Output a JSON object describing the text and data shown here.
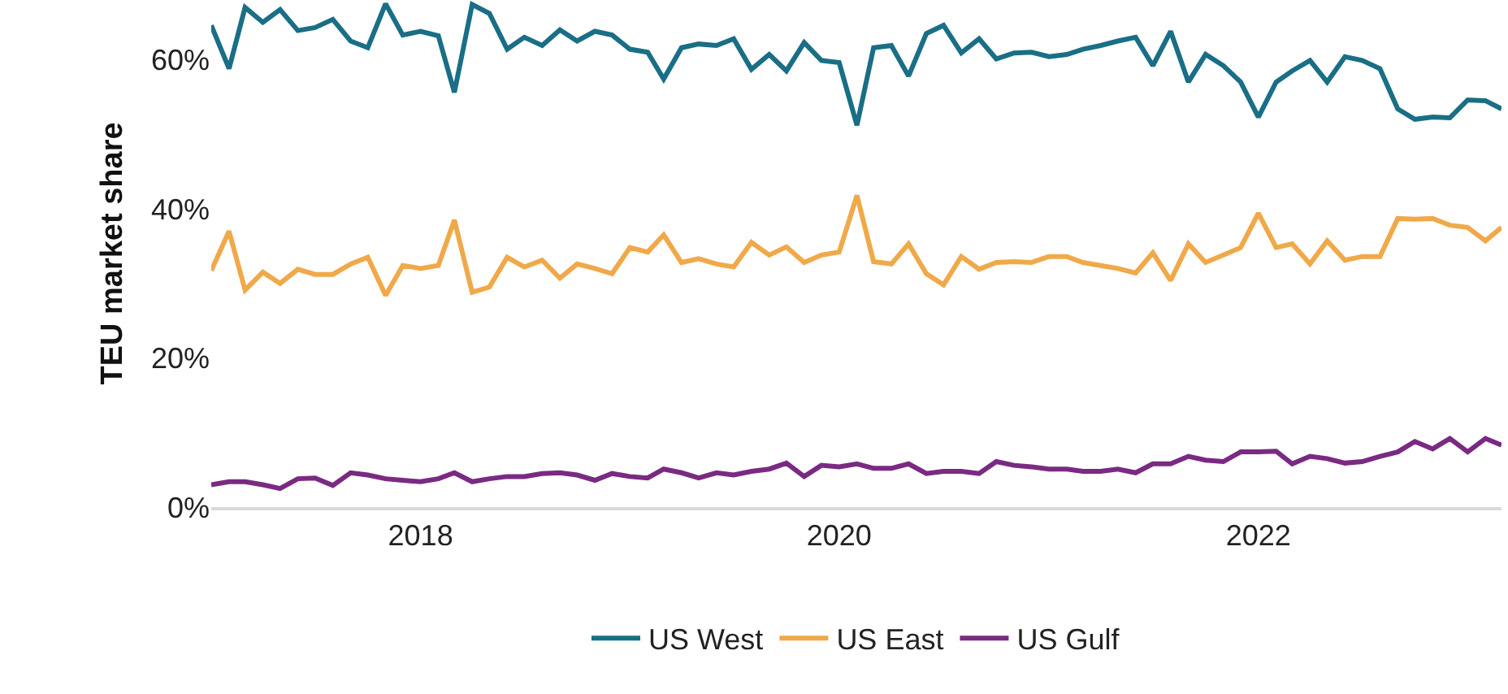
{
  "chart_data": {
    "type": "line",
    "ylabel": "TEU market share",
    "x": [
      "2017-01",
      "2017-02",
      "2017-03",
      "2017-04",
      "2017-05",
      "2017-06",
      "2017-07",
      "2017-08",
      "2017-09",
      "2017-10",
      "2017-11",
      "2017-12",
      "2018-01",
      "2018-02",
      "2018-03",
      "2018-04",
      "2018-05",
      "2018-06",
      "2018-07",
      "2018-08",
      "2018-09",
      "2018-10",
      "2018-11",
      "2018-12",
      "2019-01",
      "2019-02",
      "2019-03",
      "2019-04",
      "2019-05",
      "2019-06",
      "2019-07",
      "2019-08",
      "2019-09",
      "2019-10",
      "2019-11",
      "2019-12",
      "2020-01",
      "2020-02",
      "2020-03",
      "2020-04",
      "2020-05",
      "2020-06",
      "2020-07",
      "2020-08",
      "2020-09",
      "2020-10",
      "2020-11",
      "2020-12",
      "2021-01",
      "2021-02",
      "2021-03",
      "2021-04",
      "2021-05",
      "2021-06",
      "2021-07",
      "2021-08",
      "2021-09",
      "2021-10",
      "2021-11",
      "2021-12",
      "2022-01",
      "2022-02",
      "2022-03",
      "2022-04",
      "2022-05",
      "2022-06",
      "2022-07",
      "2022-08",
      "2022-09",
      "2022-10",
      "2022-11",
      "2022-12",
      "2023-01",
      "2023-02",
      "2023-03"
    ],
    "series": [
      {
        "name": "US West",
        "color": "#1a6e86",
        "values": [
          64.6,
          58.8,
          67.0,
          65.0,
          66.7,
          63.9,
          64.3,
          65.4,
          62.5,
          61.6,
          67.5,
          63.3,
          63.8,
          63.2,
          55.6,
          67.4,
          66.2,
          61.4,
          63.0,
          61.9,
          64.0,
          62.5,
          63.8,
          63.3,
          61.4,
          61.0,
          57.4,
          61.6,
          62.1,
          61.9,
          62.8,
          58.7,
          60.7,
          58.5,
          62.3,
          59.9,
          59.6,
          51.2,
          61.6,
          61.9,
          57.8,
          63.5,
          64.6,
          60.9,
          62.8,
          60.1,
          60.9,
          61.0,
          60.4,
          60.7,
          61.4,
          61.9,
          62.5,
          63.0,
          59.2,
          63.8,
          57.0,
          60.7,
          59.2,
          57.0,
          52.3,
          57.0,
          58.5,
          59.9,
          57.0,
          60.4,
          59.9,
          58.8,
          53.4,
          52.0,
          52.3,
          52.2,
          54.6,
          54.5,
          53.4
        ]
      },
      {
        "name": "US East",
        "color": "#f0a94a",
        "values": [
          31.7,
          37.0,
          29.1,
          31.5,
          30.0,
          31.9,
          31.2,
          31.2,
          32.6,
          33.5,
          28.4,
          32.4,
          32.0,
          32.4,
          38.5,
          28.8,
          29.5,
          33.5,
          32.2,
          33.1,
          30.7,
          32.6,
          32.0,
          31.3,
          34.8,
          34.2,
          36.5,
          32.8,
          33.3,
          32.6,
          32.2,
          35.5,
          33.8,
          34.9,
          32.8,
          33.8,
          34.2,
          41.8,
          32.9,
          32.6,
          35.3,
          31.3,
          29.8,
          33.6,
          31.9,
          32.8,
          32.9,
          32.8,
          33.6,
          33.6,
          32.8,
          32.4,
          32.0,
          31.4,
          34.1,
          30.4,
          35.3,
          32.8,
          33.8,
          34.8,
          39.4,
          34.8,
          35.3,
          32.6,
          35.7,
          33.1,
          33.6,
          33.6,
          38.7,
          38.6,
          38.7,
          37.8,
          37.5,
          35.7,
          37.5
        ]
      },
      {
        "name": "US Gulf",
        "color": "#7a2a82",
        "values": [
          3.0,
          3.4,
          3.4,
          3.0,
          2.5,
          3.8,
          3.9,
          2.9,
          4.6,
          4.3,
          3.8,
          3.6,
          3.4,
          3.8,
          4.6,
          3.4,
          3.8,
          4.1,
          4.1,
          4.5,
          4.6,
          4.3,
          3.6,
          4.5,
          4.1,
          3.9,
          5.1,
          4.6,
          3.9,
          4.6,
          4.3,
          4.8,
          5.1,
          5.9,
          4.1,
          5.6,
          5.4,
          5.8,
          5.2,
          5.2,
          5.8,
          4.5,
          4.8,
          4.8,
          4.5,
          6.1,
          5.6,
          5.4,
          5.1,
          5.1,
          4.8,
          4.8,
          5.1,
          4.6,
          5.8,
          5.8,
          6.8,
          6.3,
          6.1,
          7.4,
          7.4,
          7.5,
          5.8,
          6.8,
          6.5,
          5.9,
          6.1,
          6.8,
          7.4,
          8.8,
          7.8,
          9.2,
          7.4,
          9.2,
          8.3
        ]
      }
    ],
    "xlim": [
      "2017-01",
      "2023-03"
    ],
    "xticks": [
      {
        "value": "2018-01",
        "label": "2018"
      },
      {
        "value": "2020-01",
        "label": "2020"
      },
      {
        "value": "2022-01",
        "label": "2022"
      }
    ],
    "ylim": [
      0,
      68
    ],
    "yticks": [
      {
        "value": 0,
        "label": "0%"
      },
      {
        "value": 20,
        "label": "20%"
      },
      {
        "value": 40,
        "label": "40%"
      },
      {
        "value": 60,
        "label": "60%"
      }
    ],
    "legend": "bottom",
    "marker": "none",
    "line_style": "solid"
  }
}
